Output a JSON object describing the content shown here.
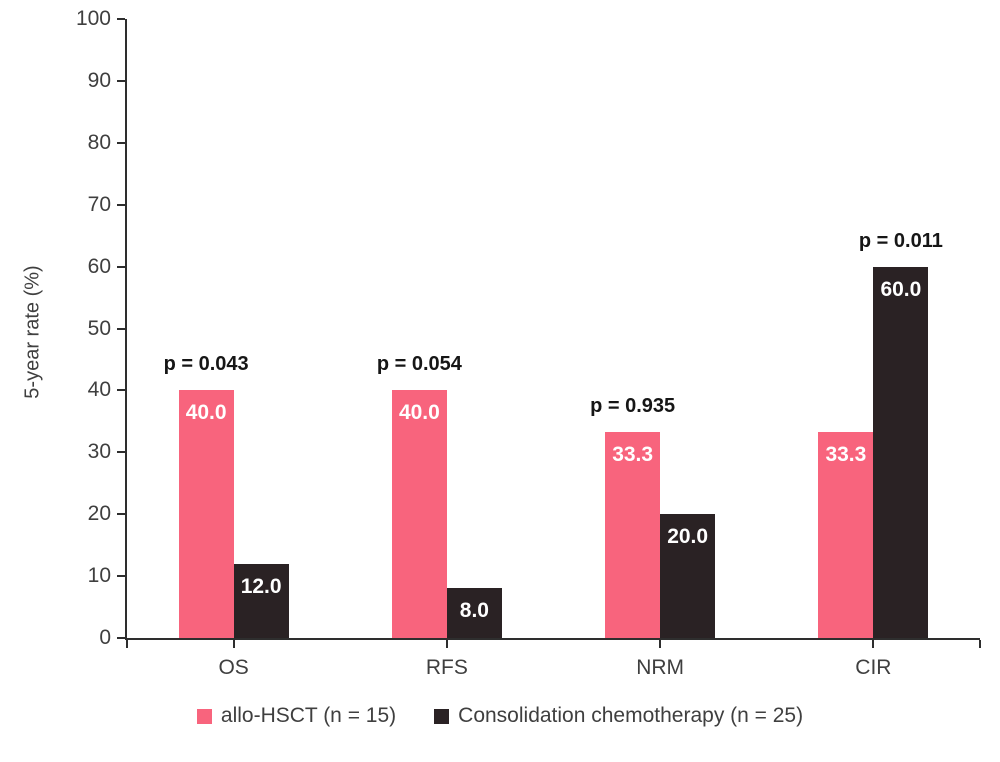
{
  "chart_data": {
    "type": "bar",
    "title": "",
    "ylabel": "5-year rate (%)",
    "xlabel": "",
    "ylim": [
      0,
      100
    ],
    "yticks": [
      0,
      10,
      20,
      30,
      40,
      50,
      60,
      70,
      80,
      90,
      100
    ],
    "grid": false,
    "legend_position": "bottom",
    "categories": [
      "OS",
      "RFS",
      "NRM",
      "CIR"
    ],
    "series": [
      {
        "name": "allo-HSCT (n = 15)",
        "color": "#F8647D",
        "values": [
          40.0,
          40.0,
          33.3,
          33.3
        ],
        "labels": [
          "40.0",
          "40.0",
          "33.3",
          "33.3"
        ]
      },
      {
        "name": "Consolidation chemotherapy (n = 25)",
        "color": "#2A2224",
        "values": [
          12.0,
          8.0,
          20.0,
          60.0
        ],
        "labels": [
          "12.0",
          "8.0",
          "20.0",
          "60.0"
        ]
      }
    ],
    "p_values": [
      "p = 0.043",
      "p = 0.054",
      "p = 0.935",
      "p = 0.011"
    ],
    "colors": {
      "axis": "#2e2e2e",
      "tick_text": "#3f3f3f",
      "p_value_text": "#161616",
      "bar_value_text": "#ffffff",
      "background": "#ffffff"
    }
  }
}
